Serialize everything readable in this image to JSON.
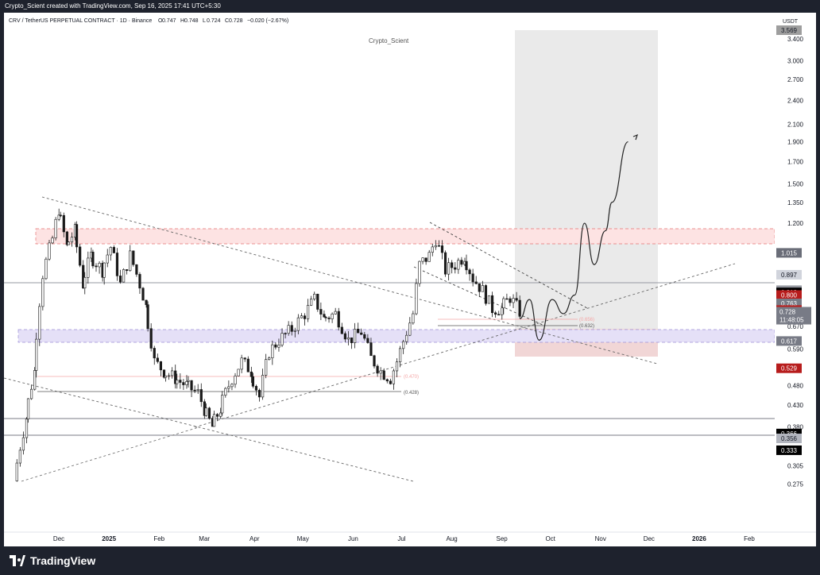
{
  "header": {
    "credit": "Crypto_Scient created with TradingView.com, Sep 16, 2025 17:41 UTC+5:30"
  },
  "chart_data": {
    "type": "candlestick",
    "symbol_line": "CRV / TetherUS PERPETUAL CONTRACT · 1D · Binance",
    "ohlc_labels": [
      "O",
      "H",
      "L",
      "C"
    ],
    "ohlc_values": [
      "0.747",
      "0.748",
      "0.724",
      "0.728"
    ],
    "change": "−0.020 (−2.67%)",
    "watermark": "Crypto_Scient",
    "currency": "USDT",
    "y_scale": "log",
    "ylim": [
      0.24,
      3.6
    ],
    "y_ticks": [
      "3.400",
      "3.000",
      "2.700",
      "2.400",
      "2.100",
      "1.900",
      "1.700",
      "1.500",
      "1.350",
      "1.200",
      "1.015",
      "0.897",
      "0.822",
      "0.812",
      "0.800",
      "0.763",
      "0.735",
      "0.728",
      "0.670",
      "0.617",
      "0.590",
      "0.529",
      "0.480",
      "0.430",
      "0.380",
      "0.366",
      "0.356",
      "0.333",
      "0.305",
      "0.275"
    ],
    "top_partial_label": "3.569",
    "price_badges": [
      {
        "value": "3.569",
        "color": "#9e9e9e",
        "text_color": "#131722"
      },
      {
        "value": "1.015",
        "color": "#6a6d78",
        "text_color": "#ffffff"
      },
      {
        "value": "0.897",
        "color": "#d1d4dc",
        "text_color": "#131722"
      },
      {
        "value": "0.822",
        "color": "#9598a1",
        "text_color": "#131722"
      },
      {
        "value": "0.812",
        "color": "#000000",
        "text_color": "#ffffff"
      },
      {
        "value": "0.800",
        "color": "#b71c1c",
        "text_color": "#ffffff"
      },
      {
        "value": "0.763",
        "color": "#787b86",
        "text_color": "#ffffff"
      },
      {
        "value": "0.735",
        "color": "#b71c1c",
        "text_color": "#ffffff"
      },
      {
        "value": "0.617",
        "color": "#787b86",
        "text_color": "#ffffff"
      },
      {
        "value": "0.529",
        "color": "#b71c1c",
        "text_color": "#ffffff"
      },
      {
        "value": "0.366",
        "color": "#000000",
        "text_color": "#ffffff"
      },
      {
        "value": "0.356",
        "color": "#b2b5be",
        "text_color": "#131722"
      },
      {
        "value": "0.333",
        "color": "#000000",
        "text_color": "#ffffff"
      }
    ],
    "last_price": {
      "value": "0.728",
      "countdown": "11:48:05",
      "color": "#787b86"
    },
    "x_labels": [
      {
        "label": "Dec",
        "bold": false
      },
      {
        "label": "2025",
        "bold": true
      },
      {
        "label": "Feb",
        "bold": false
      },
      {
        "label": "Mar",
        "bold": false
      },
      {
        "label": "Apr",
        "bold": false
      },
      {
        "label": "May",
        "bold": false
      },
      {
        "label": "Jun",
        "bold": false
      },
      {
        "label": "Jul",
        "bold": false
      },
      {
        "label": "Aug",
        "bold": false
      },
      {
        "label": "Sep",
        "bold": false
      },
      {
        "label": "Oct",
        "bold": false
      },
      {
        "label": "Nov",
        "bold": false
      },
      {
        "label": "Dec",
        "bold": false
      },
      {
        "label": "2026",
        "bold": true
      },
      {
        "label": "Feb",
        "bold": false
      }
    ],
    "fib_labels": [
      "(0.470)",
      "(0.428)",
      "(0.656)",
      "(0.632)"
    ],
    "horizontal_levels": [
      "0.763",
      "0.366",
      "0.333"
    ],
    "close_path": [
      [
        "2024-11-08",
        0.28
      ],
      [
        "2024-11-15",
        0.4
      ],
      [
        "2024-11-20",
        0.52
      ],
      [
        "2024-11-25",
        0.9
      ],
      [
        "2024-12-01",
        1.1
      ],
      [
        "2024-12-05",
        1.3
      ],
      [
        "2024-12-10",
        1.05
      ],
      [
        "2024-12-15",
        1.15
      ],
      [
        "2024-12-20",
        0.85
      ],
      [
        "2024-12-25",
        1.0
      ],
      [
        "2025-01-01",
        0.92
      ],
      [
        "2025-01-06",
        1.05
      ],
      [
        "2025-01-12",
        0.85
      ],
      [
        "2025-01-18",
        1.0
      ],
      [
        "2025-01-24",
        0.85
      ],
      [
        "2025-01-28",
        0.75
      ],
      [
        "2025-02-02",
        0.55
      ],
      [
        "2025-02-08",
        0.52
      ],
      [
        "2025-02-15",
        0.5
      ],
      [
        "2025-02-22",
        0.48
      ],
      [
        "2025-03-01",
        0.46
      ],
      [
        "2025-03-05",
        0.42
      ],
      [
        "2025-03-10",
        0.38
      ],
      [
        "2025-03-15",
        0.42
      ],
      [
        "2025-03-22",
        0.5
      ],
      [
        "2025-03-28",
        0.55
      ],
      [
        "2025-04-03",
        0.52
      ],
      [
        "2025-04-08",
        0.45
      ],
      [
        "2025-04-14",
        0.58
      ],
      [
        "2025-04-20",
        0.62
      ],
      [
        "2025-04-28",
        0.66
      ],
      [
        "2025-05-06",
        0.72
      ],
      [
        "2025-05-12",
        0.78
      ],
      [
        "2025-05-18",
        0.7
      ],
      [
        "2025-05-25",
        0.72
      ],
      [
        "2025-06-02",
        0.62
      ],
      [
        "2025-06-10",
        0.65
      ],
      [
        "2025-06-16",
        0.56
      ],
      [
        "2025-06-22",
        0.52
      ],
      [
        "2025-06-28",
        0.5
      ],
      [
        "2025-07-02",
        0.55
      ],
      [
        "2025-07-08",
        0.65
      ],
      [
        "2025-07-12",
        0.72
      ],
      [
        "2025-07-16",
        0.95
      ],
      [
        "2025-07-22",
        1.0
      ],
      [
        "2025-07-26",
        1.1
      ],
      [
        "2025-08-01",
        0.92
      ],
      [
        "2025-08-07",
        0.95
      ],
      [
        "2025-08-13",
        1.0
      ],
      [
        "2025-08-18",
        0.88
      ],
      [
        "2025-08-24",
        0.82
      ],
      [
        "2025-08-30",
        0.74
      ],
      [
        "2025-09-05",
        0.74
      ],
      [
        "2025-09-10",
        0.79
      ],
      [
        "2025-09-16",
        0.728
      ]
    ],
    "projection_path": [
      [
        "2025-09-16",
        0.7
      ],
      [
        "2025-09-22",
        0.78
      ],
      [
        "2025-09-28",
        0.62
      ],
      [
        "2025-10-06",
        0.78
      ],
      [
        "2025-10-13",
        0.72
      ],
      [
        "2025-10-20",
        0.8
      ],
      [
        "2025-10-26",
        1.2
      ],
      [
        "2025-11-01",
        0.95
      ],
      [
        "2025-11-08",
        1.15
      ],
      [
        "2025-11-12",
        1.35
      ],
      [
        "2025-11-22",
        1.9
      ]
    ]
  }
}
